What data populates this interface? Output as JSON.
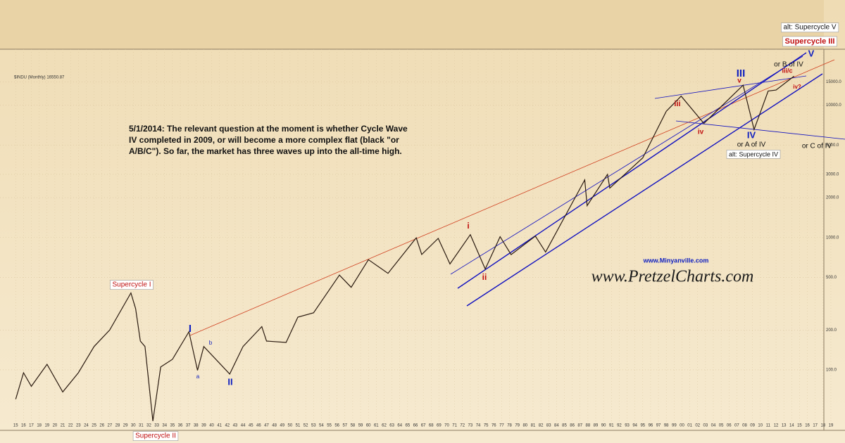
{
  "chart_data": {
    "type": "line",
    "log_scale": true,
    "header": "$INDU (Monthly) 16550.87",
    "note": [
      "5/1/2014:  The relevant question at the moment is whether Cycle Wave",
      "IV completed in 2009, or will become a more complex flat (black \"or",
      "A/B/C\").  So far, the market has three waves up into the all-time high."
    ],
    "annotations": [
      "Supercycle I",
      "Supercycle II",
      "I",
      "II",
      "a",
      "b",
      "i",
      "ii",
      "III",
      "IV",
      "V",
      "iii",
      "iv",
      "v",
      "Supercycle III",
      "alt: Supercycle V",
      "alt: Supercycle IV",
      "or A of IV",
      "or B of IV",
      "or C of IV",
      "iii/c",
      "iv?",
      "www.Minyanville.com",
      "www.PretzelCharts.com"
    ],
    "series": [
      {
        "name": "$INDU",
        "color": "#2a1a10",
        "x": [
          1915,
          1916,
          1917,
          1919,
          1921,
          1923,
          1925,
          1927,
          1929.7,
          1930.3,
          1930.9,
          1931.5,
          1932.5,
          1933.5,
          1935,
          1937.1,
          1938.2,
          1939,
          1942.3,
          1944,
          1946.4,
          1947,
          1949.5,
          1951,
          1953,
          1956.3,
          1957.8,
          1960,
          1962.5,
          1966.1,
          1966.8,
          1968.9,
          1970.4,
          1973,
          1974.9,
          1976.8,
          1978.2,
          1981.3,
          1982.6,
          1987.6,
          1987.9,
          1990.5,
          1990.8,
          1995,
          1998,
          1999.9,
          2002.8,
          2007.8,
          2009.2,
          2011,
          2012,
          2014.3
        ],
        "values": [
          60,
          95,
          75,
          110,
          68,
          95,
          150,
          200,
          381,
          290,
          165,
          150,
          41,
          105,
          120,
          194,
          99,
          150,
          93,
          150,
          212,
          165,
          161,
          250,
          270,
          520,
          420,
          680,
          536,
          995,
          744,
          985,
          631,
          1051,
          578,
          1014,
          742,
          1024,
          777,
          2722,
          1739,
          2999,
          2365,
          4000,
          9000,
          11700,
          7286,
          14164,
          6547,
          12800,
          13000,
          16550
        ]
      }
    ],
    "xlim": [
      1913,
      2020.8
    ],
    "ylim": [
      38,
      19500
    ],
    "yticks": [
      {
        "value": 100,
        "label": "100.0"
      },
      {
        "value": 200,
        "label": "200.0"
      },
      {
        "value": 500,
        "label": "500.0"
      },
      {
        "value": 1000,
        "label": "1000.0"
      },
      {
        "value": 2000,
        "label": "2000.0"
      },
      {
        "value": 3000,
        "label": "3000.0"
      },
      {
        "value": 5000,
        "label": "5000.0"
      },
      {
        "value": 10000,
        "label": "10000.0"
      },
      {
        "value": 15000,
        "label": "15000.0"
      }
    ],
    "xticks": [
      {
        "value": 1915,
        "label": "15"
      },
      {
        "value": 1916,
        "label": "16"
      },
      {
        "value": 1917,
        "label": "17"
      },
      {
        "value": 1918,
        "label": "18"
      },
      {
        "value": 1919,
        "label": "19"
      },
      {
        "value": 1920,
        "label": "20"
      },
      {
        "value": 1921,
        "label": "21"
      },
      {
        "value": 1922,
        "label": "22"
      },
      {
        "value": 1923,
        "label": "23"
      },
      {
        "value": 1924,
        "label": "24"
      },
      {
        "value": 1925,
        "label": "25"
      },
      {
        "value": 1926,
        "label": "26"
      },
      {
        "value": 1927,
        "label": "27"
      },
      {
        "value": 1928,
        "label": "28"
      },
      {
        "value": 1929,
        "label": "29"
      },
      {
        "value": 1930,
        "label": "30"
      },
      {
        "value": 1931,
        "label": "31"
      },
      {
        "value": 1932,
        "label": "32"
      },
      {
        "value": 1933,
        "label": "33"
      },
      {
        "value": 1934,
        "label": "34"
      },
      {
        "value": 1935,
        "label": "35"
      },
      {
        "value": 1936,
        "label": "36"
      },
      {
        "value": 1937,
        "label": "37"
      },
      {
        "value": 1938,
        "label": "38"
      },
      {
        "value": 1939,
        "label": "39"
      },
      {
        "value": 1940,
        "label": "40"
      },
      {
        "value": 1941,
        "label": "41"
      },
      {
        "value": 1942,
        "label": "42"
      },
      {
        "value": 1943,
        "label": "43"
      },
      {
        "value": 1944,
        "label": "44"
      },
      {
        "value": 1945,
        "label": "45"
      },
      {
        "value": 1946,
        "label": "46"
      },
      {
        "value": 1947,
        "label": "47"
      },
      {
        "value": 1948,
        "label": "48"
      },
      {
        "value": 1949,
        "label": "49"
      },
      {
        "value": 1950,
        "label": "50"
      },
      {
        "value": 1951,
        "label": "51"
      },
      {
        "value": 1952,
        "label": "52"
      },
      {
        "value": 1953,
        "label": "53"
      },
      {
        "value": 1954,
        "label": "54"
      },
      {
        "value": 1955,
        "label": "55"
      },
      {
        "value": 1956,
        "label": "56"
      },
      {
        "value": 1957,
        "label": "57"
      },
      {
        "value": 1958,
        "label": "58"
      },
      {
        "value": 1959,
        "label": "59"
      },
      {
        "value": 1960,
        "label": "60"
      },
      {
        "value": 1961,
        "label": "61"
      },
      {
        "value": 1962,
        "label": "62"
      },
      {
        "value": 1963,
        "label": "63"
      },
      {
        "value": 1964,
        "label": "64"
      },
      {
        "value": 1965,
        "label": "65"
      },
      {
        "value": 1966,
        "label": "66"
      },
      {
        "value": 1967,
        "label": "67"
      },
      {
        "value": 1968,
        "label": "68"
      },
      {
        "value": 1969,
        "label": "69"
      },
      {
        "value": 1970,
        "label": "70"
      },
      {
        "value": 1971,
        "label": "71"
      },
      {
        "value": 1972,
        "label": "72"
      },
      {
        "value": 1973,
        "label": "73"
      },
      {
        "value": 1974,
        "label": "74"
      },
      {
        "value": 1975,
        "label": "75"
      },
      {
        "value": 1976,
        "label": "76"
      },
      {
        "value": 1977,
        "label": "77"
      },
      {
        "value": 1978,
        "label": "78"
      },
      {
        "value": 1979,
        "label": "79"
      },
      {
        "value": 1980,
        "label": "80"
      },
      {
        "value": 1981,
        "label": "81"
      },
      {
        "value": 1982,
        "label": "82"
      },
      {
        "value": 1983,
        "label": "83"
      },
      {
        "value": 1984,
        "label": "84"
      },
      {
        "value": 1985,
        "label": "85"
      },
      {
        "value": 1986,
        "label": "86"
      },
      {
        "value": 1987,
        "label": "87"
      },
      {
        "value": 1988,
        "label": "88"
      },
      {
        "value": 1989,
        "label": "89"
      },
      {
        "value": 1990,
        "label": "90"
      },
      {
        "value": 1991,
        "label": "91"
      },
      {
        "value": 1992,
        "label": "92"
      },
      {
        "value": 1993,
        "label": "93"
      },
      {
        "value": 1994,
        "label": "94"
      },
      {
        "value": 1995,
        "label": "95"
      },
      {
        "value": 1996,
        "label": "96"
      },
      {
        "value": 1997,
        "label": "97"
      },
      {
        "value": 1998,
        "label": "98"
      },
      {
        "value": 1999,
        "label": "99"
      },
      {
        "value": 2000,
        "label": "00"
      },
      {
        "value": 2001,
        "label": "01"
      },
      {
        "value": 2002,
        "label": "02"
      },
      {
        "value": 2003,
        "label": "03"
      },
      {
        "value": 2004,
        "label": "04"
      },
      {
        "value": 2005,
        "label": "05"
      },
      {
        "value": 2006,
        "label": "06"
      },
      {
        "value": 2007,
        "label": "07"
      },
      {
        "value": 2008,
        "label": "08"
      },
      {
        "value": 2009,
        "label": "09"
      },
      {
        "value": 2010,
        "label": "10"
      },
      {
        "value": 2011,
        "label": "11"
      },
      {
        "value": 2012,
        "label": "12"
      },
      {
        "value": 2013,
        "label": "13"
      },
      {
        "value": 2014,
        "label": "14"
      },
      {
        "value": 2015,
        "label": "15"
      },
      {
        "value": 2016,
        "label": "16"
      },
      {
        "value": 2017,
        "label": "17"
      },
      {
        "value": 2018,
        "label": "18"
      },
      {
        "value": 2019,
        "label": "19"
      }
    ]
  }
}
